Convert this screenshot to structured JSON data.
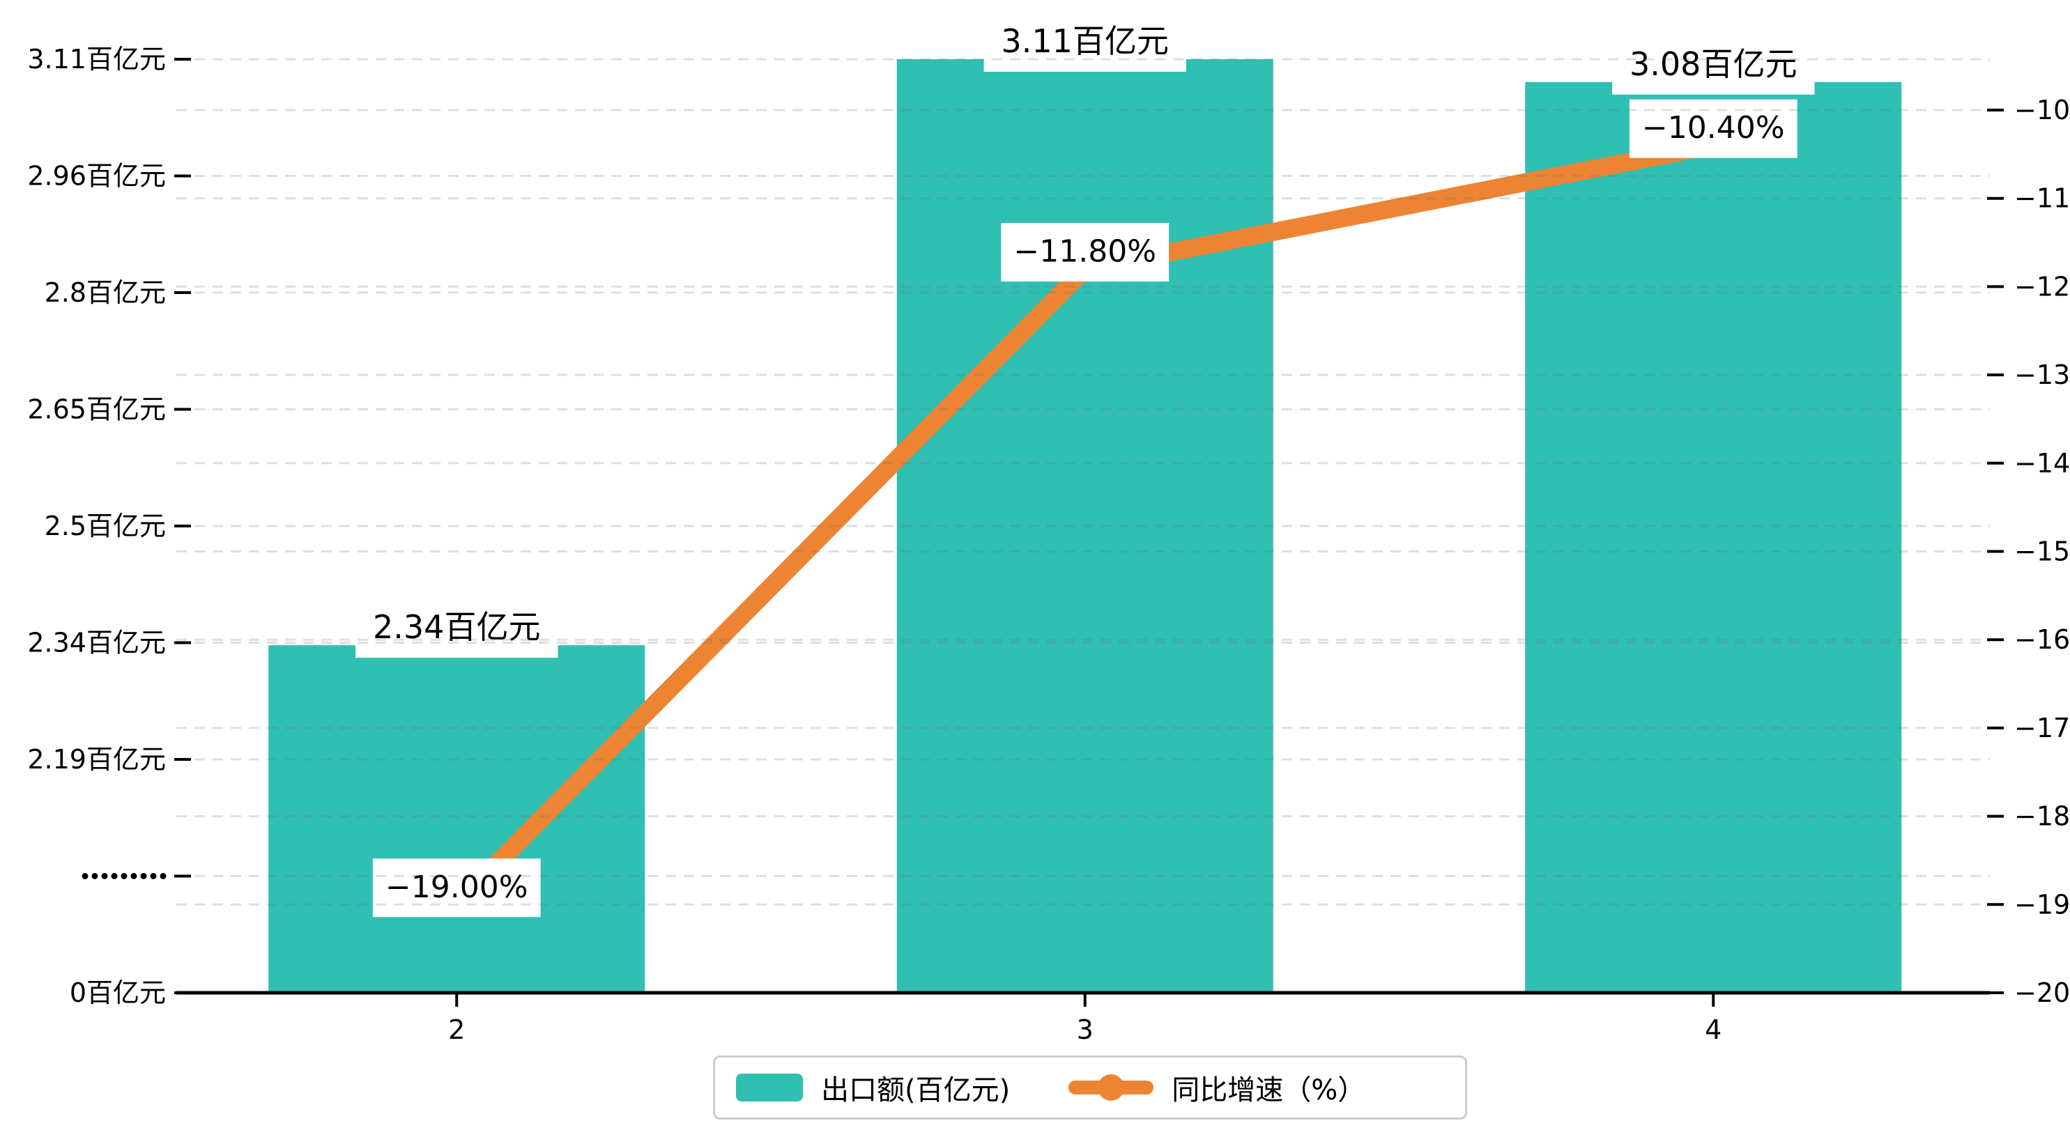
{
  "chart_data": {
    "type": "bar+line dual-axis",
    "categories": [
      "2",
      "3",
      "4"
    ],
    "series": [
      {
        "name": "出口额(百亿元)",
        "type": "bar",
        "axis": "left",
        "values": [
          2.34,
          3.11,
          3.08
        ],
        "point_labels": [
          "2.34百亿元",
          "3.11百亿元",
          "3.08百亿元"
        ],
        "color": "#2FBFB3"
      },
      {
        "name": "同比增速（%）",
        "type": "line",
        "axis": "right",
        "values": [
          -19.0,
          -11.8,
          -10.4
        ],
        "point_labels": [
          "−19.00%",
          "−11.80%",
          "−10.40%"
        ],
        "color": "#EC8433"
      }
    ],
    "left_axis": {
      "unit": "百亿元",
      "tick_labels": [
        "3.11百亿元",
        "2.96百亿元",
        "2.8百亿元",
        "2.65百亿元",
        "2.5百亿元",
        "2.34百亿元",
        "2.19百亿元",
        ".........",
        "0百亿元"
      ],
      "tick_values": [
        3.11,
        2.9567,
        2.8033,
        2.65,
        2.4967,
        2.3433,
        2.19,
        null,
        0
      ],
      "break_marker": ".........",
      "range": [
        0,
        3.11
      ]
    },
    "right_axis": {
      "tick_labels": [
        "−10",
        "−11",
        "−12",
        "−13",
        "−14",
        "−15",
        "−16",
        "−17",
        "−18",
        "−19",
        "−20"
      ],
      "tick_values": [
        -10,
        -11,
        -12,
        -13,
        -14,
        -15,
        -16,
        -17,
        -18,
        -19,
        -20
      ],
      "range": [
        -20,
        -10
      ]
    },
    "x_axis": {
      "tick_labels": [
        "2",
        "3",
        "4"
      ]
    },
    "grid": {
      "style": "dashed",
      "on": true
    },
    "legend_position": "bottom",
    "colors": {
      "bar": "#2FBFB3",
      "line": "#EC8433",
      "axis": "#000000",
      "label_background": "#FFFFFF",
      "label_text": "#000000",
      "legend_border": "#CCCCCC",
      "grid_line": "rgba(110,110,110,0.22)"
    }
  },
  "legend": {
    "bar_label": "出口额(百亿元)",
    "line_label": "同比增速（%）"
  }
}
